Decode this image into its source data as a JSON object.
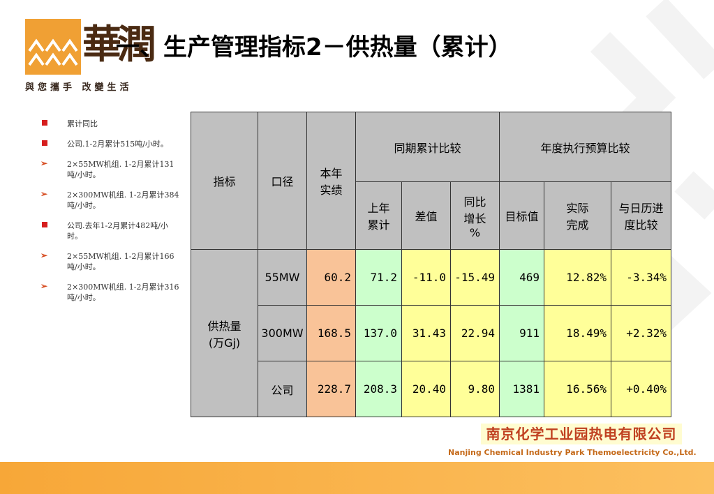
{
  "header": {
    "title": "一、生产管理指标2－供热量（累计）",
    "logo_chars": "華潤",
    "slogan": "與您攜手 改變生活"
  },
  "bullets": [
    {
      "marker": "square",
      "text": "累计同比"
    },
    {
      "marker": "square",
      "text": "公司.1-2月累计515吨/小时。"
    },
    {
      "marker": "arrow",
      "text": "2×55MW机组. 1-2月累计131吨/小时。"
    },
    {
      "marker": "arrow",
      "text": "2×300MW机组. 1-2月累计384吨/小时。"
    },
    {
      "marker": "square",
      "text": "公司.去年1-2月累计482吨/小时。"
    },
    {
      "marker": "arrow",
      "text": "2×55MW机组. 1-2月累计166吨/小时。"
    },
    {
      "marker": "arrow",
      "text": "2×300MW机组. 1-2月累计316吨/小时。"
    }
  ],
  "table": {
    "headers": {
      "indicator": "指标",
      "caliber": "口径",
      "actual": "本年\n实绩",
      "period_group": "同期累计比较",
      "budget_group": "年度执行预算比较",
      "prev_cum": "上年\n累计",
      "diff": "差值",
      "yoy": "同比\n增长\n%",
      "target": "目标值",
      "completion": "实际\n完成",
      "progress": "与日历进\n度比较"
    },
    "indicator_name": "供热量\n(万Gj)",
    "rows": [
      {
        "caliber": "55MW",
        "actual": "60.2",
        "prev_cum": "71.2",
        "diff": "-11.0",
        "yoy": "-15.49",
        "target": "469",
        "completion": "12.82%",
        "progress": "-3.34%"
      },
      {
        "caliber": "300MW",
        "actual": "168.5",
        "prev_cum": "137.0",
        "diff": "31.43",
        "yoy": "22.94",
        "target": "911",
        "completion": "18.49%",
        "progress": "+2.32%"
      },
      {
        "caliber": "公司",
        "actual": "228.7",
        "prev_cum": "208.3",
        "diff": "20.40",
        "yoy": "9.80",
        "target": "1381",
        "completion": "16.56%",
        "progress": "+0.40%"
      }
    ]
  },
  "footer": {
    "company_cn": "南京化学工业园热电有限公司",
    "company_en": "Nanjing Chemical Industry Park Themoelectricity  Co.,Ltd."
  },
  "colors": {
    "accent_orange": "#f0a034",
    "actual_cell": "#f9c398",
    "green_cell": "#ccffcc",
    "yellow_cell": "#ffff99",
    "header_gray": "#c0c0c0"
  }
}
